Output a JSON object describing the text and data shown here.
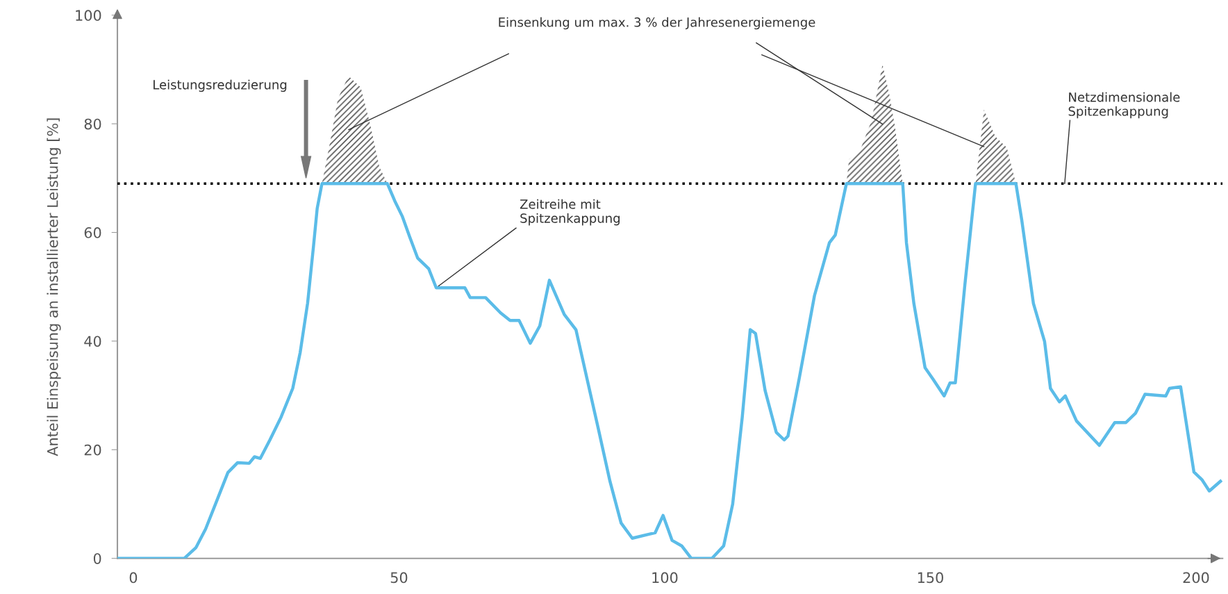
{
  "chart_data": {
    "type": "line",
    "ylabel": "Anteil Einspeisung an installierter Leistung [%]",
    "xlim": [
      -3,
      205
    ],
    "xticks": [
      0,
      50,
      100,
      150,
      200
    ],
    "ylim": [
      0,
      100
    ],
    "yticks": [
      0,
      20,
      40,
      60,
      80,
      100
    ],
    "grid": false,
    "legend": false,
    "marker": "none",
    "line_style": "solid",
    "series": [
      {
        "type": "area",
        "color": "#555555",
        "x": [
          35.5,
          37.1,
          38.5,
          40.5,
          42.8,
          44.6,
          46.3,
          47.8
        ],
        "values": [
          69,
          77,
          84.6,
          88.8,
          86.7,
          79.8,
          72.1,
          69
        ]
      },
      {
        "type": "area",
        "color": "#555555",
        "x": [
          134.2,
          134.7,
          136.7,
          138.9,
          141.0,
          142.3,
          143.3,
          144.8
        ],
        "values": [
          69,
          73.5,
          74.9,
          80.5,
          90.9,
          85.3,
          79.7,
          69
        ]
      },
      {
        "type": "area",
        "color": "#555555",
        "x": [
          158.5,
          160.1,
          162.2,
          164.4,
          166.1
        ],
        "values": [
          69,
          82.6,
          77.7,
          75.6,
          69
        ]
      },
      {
        "color": "#5bbce8",
        "x": [
          -3,
          9.6,
          11.8,
          13.6,
          15.7,
          17.8,
          19.6,
          21.8,
          22.8,
          23.9,
          25.7,
          27.8,
          30.0,
          31.4,
          32.8,
          33.9,
          34.6,
          35.5,
          47.8,
          49.2,
          50.6,
          52.0,
          53.5,
          55.6,
          57.0,
          62.4,
          63.4,
          66.3,
          69.1,
          70.9,
          72.6,
          74.7,
          76.5,
          78.3,
          81.1,
          83.3,
          85.4,
          87.5,
          89.7,
          91.8,
          93.9,
          96.8,
          98.2,
          99.7,
          101.4,
          103.2,
          105.0,
          108.9,
          111.1,
          112.8,
          114.6,
          116.1,
          117.1,
          118.9,
          121.0,
          122.5,
          123.2,
          125.3,
          128.2,
          131.0,
          132.1,
          134.2,
          144.8,
          145.5,
          146.9,
          149.0,
          150.5,
          152.6,
          153.7,
          154.7,
          156.5,
          158.5,
          166.1,
          167.2,
          169.4,
          171.5,
          172.6,
          174.3,
          175.4,
          177.5,
          181.8,
          184.7,
          186.8,
          188.6,
          190.4,
          194.3,
          195.0,
          197.1,
          199.6,
          201.1,
          202.5,
          204.6
        ],
        "values": [
          0,
          0,
          2.0,
          5.4,
          10.6,
          15.8,
          17.6,
          17.5,
          18.7,
          18.4,
          21.8,
          26.0,
          31.3,
          37.9,
          47.0,
          57.4,
          64.4,
          69,
          69,
          65.8,
          63.0,
          59.2,
          55.3,
          53.3,
          49.8,
          49.8,
          48.0,
          48.0,
          45.2,
          43.8,
          43.8,
          39.6,
          42.8,
          51.2,
          44.9,
          42.1,
          33.0,
          23.9,
          14.2,
          6.5,
          3.7,
          4.4,
          4.7,
          7.9,
          3.3,
          2.3,
          0,
          0,
          2.3,
          10.0,
          26.0,
          42.1,
          41.4,
          30.9,
          23.2,
          21.8,
          22.5,
          33.0,
          48.4,
          58.1,
          59.5,
          69,
          69,
          58.1,
          46.9,
          35.1,
          33.0,
          29.9,
          32.3,
          32.3,
          50.4,
          69,
          69,
          62.3,
          46.9,
          39.9,
          31.3,
          28.8,
          29.9,
          25.3,
          20.8,
          25.0,
          25.0,
          26.7,
          30.2,
          29.9,
          31.3,
          31.6,
          15.9,
          14.5,
          12.4,
          14.2
        ]
      }
    ],
    "ref_lines": [
      {
        "axis": "y",
        "value": 69,
        "label": "Netzdimensionale\nSpitzenkappung",
        "color": "#000000",
        "line_style": "dotted"
      }
    ],
    "annotations": [
      "Leistungsreduzierung",
      "Einsenkung um max. 3 % der Jahresenergiemenge",
      {
        "text": "Zeitreihe mit\nSpitzenkappung",
        "x": 57.0,
        "y": 49.8
      }
    ]
  }
}
